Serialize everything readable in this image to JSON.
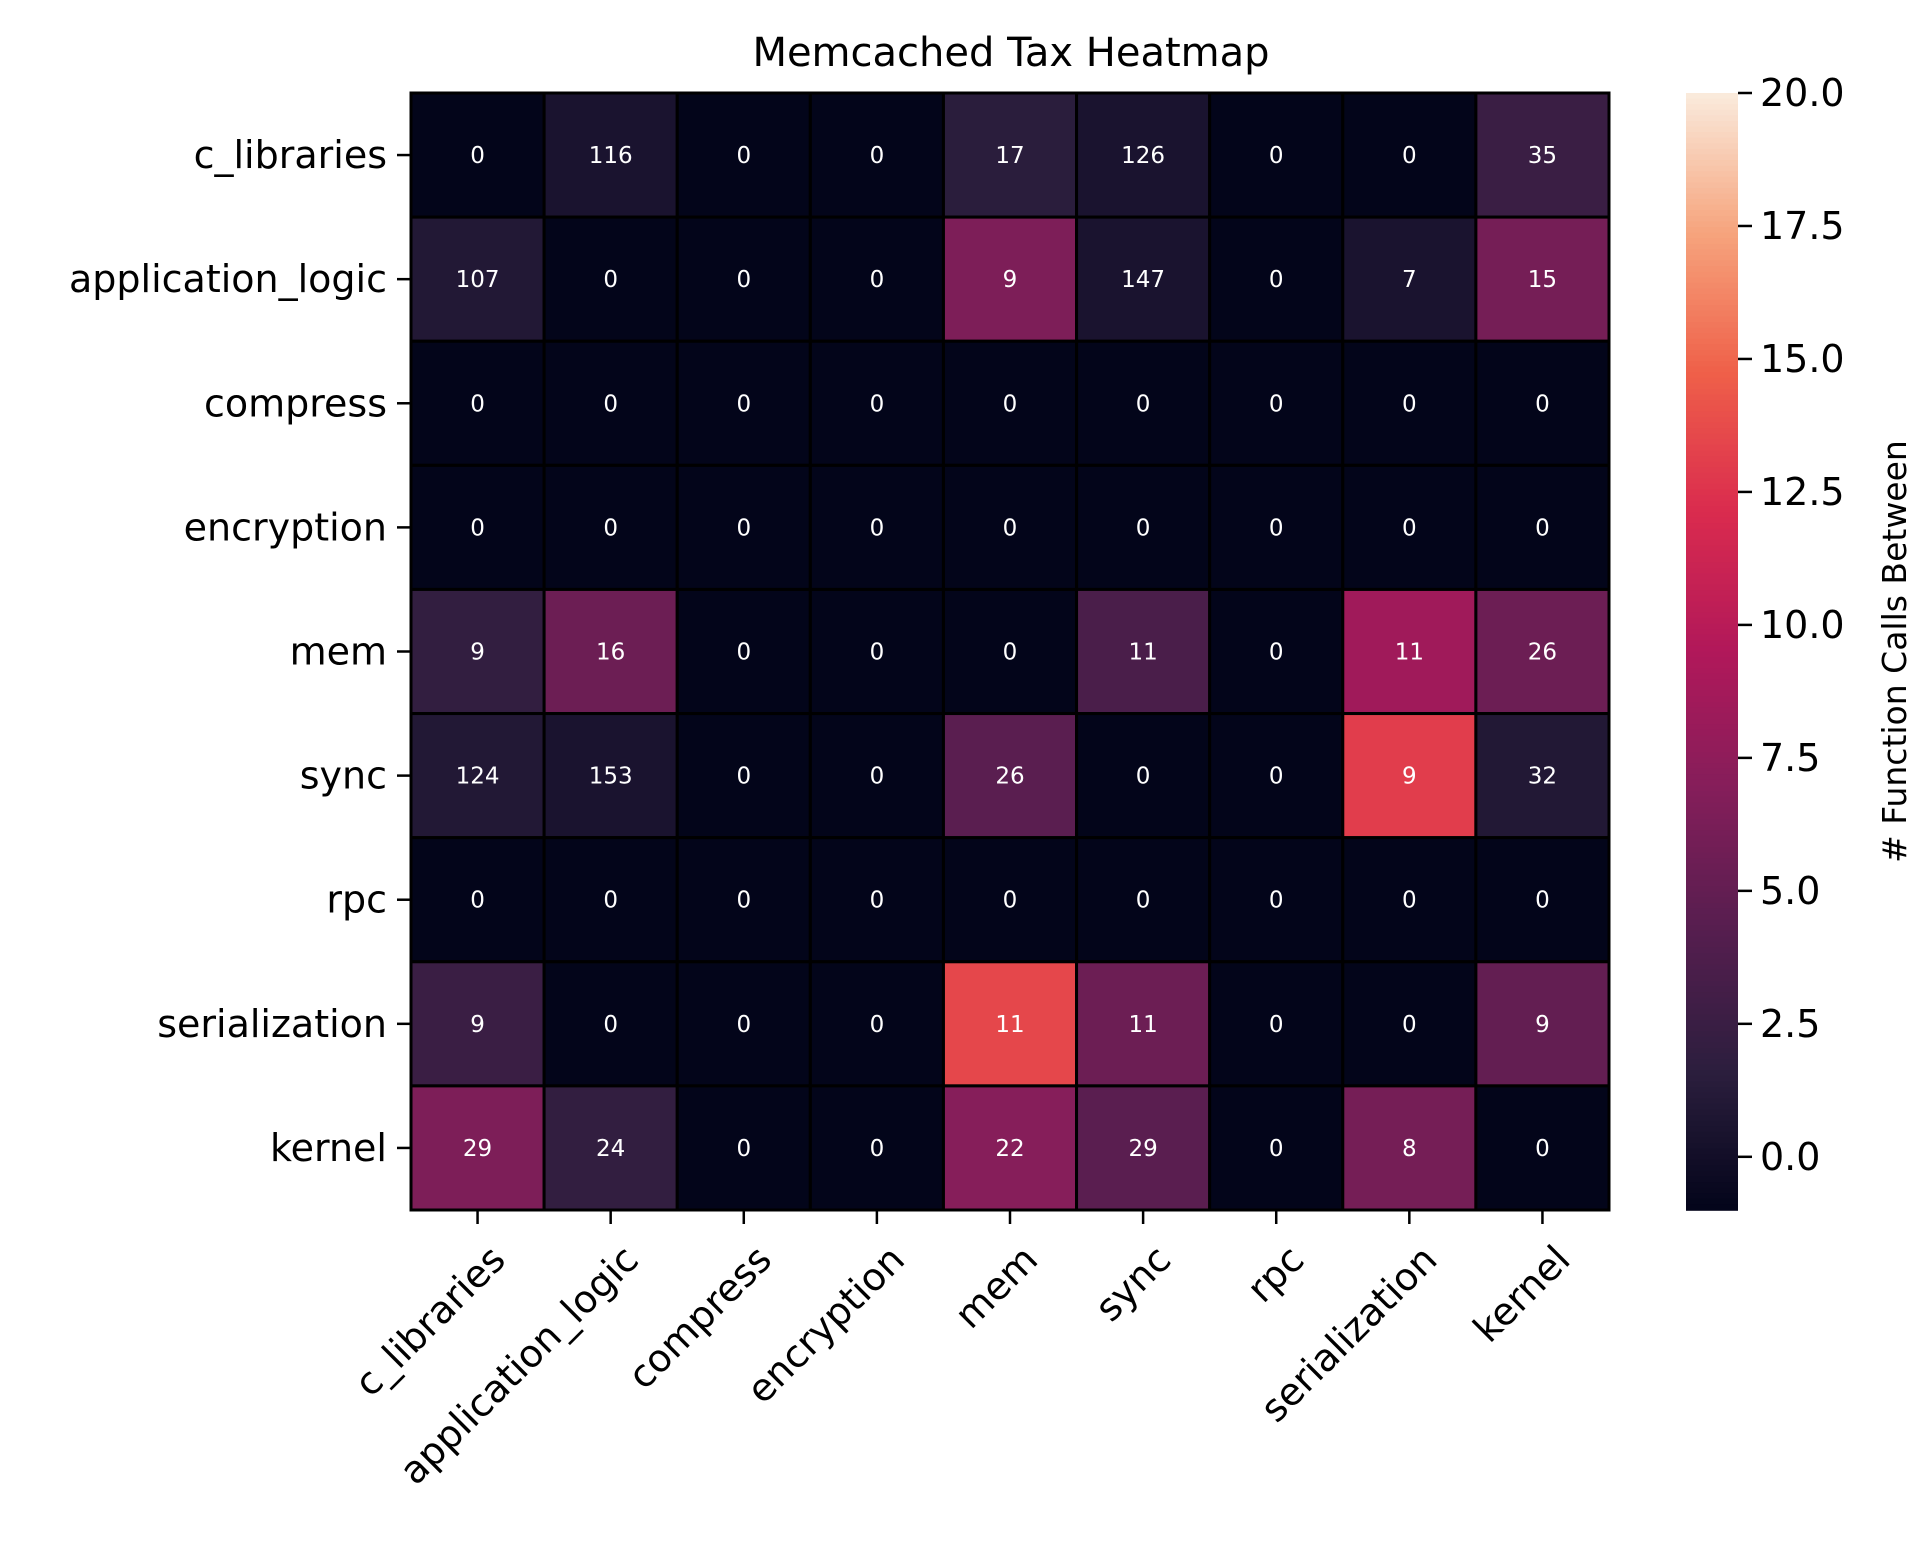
{
  "chart_data": {
    "type": "heatmap",
    "title": "Memcached Tax Heatmap",
    "xlabel": "",
    "ylabel": "",
    "rows": [
      "c_libraries",
      "application_logic",
      "compress",
      "encryption",
      "mem",
      "sync",
      "rpc",
      "serialization",
      "kernel"
    ],
    "columns": [
      "c_libraries",
      "application_logic",
      "compress",
      "encryption",
      "mem",
      "sync",
      "rpc",
      "serialization",
      "kernel"
    ],
    "annotations": [
      [
        0,
        116,
        0,
        0,
        17,
        126,
        0,
        0,
        35
      ],
      [
        107,
        0,
        0,
        0,
        9,
        147,
        0,
        7,
        15
      ],
      [
        0,
        0,
        0,
        0,
        0,
        0,
        0,
        0,
        0
      ],
      [
        0,
        0,
        0,
        0,
        0,
        0,
        0,
        0,
        0
      ],
      [
        9,
        16,
        0,
        0,
        0,
        11,
        0,
        11,
        26
      ],
      [
        124,
        153,
        0,
        0,
        26,
        0,
        0,
        9,
        32
      ],
      [
        0,
        0,
        0,
        0,
        0,
        0,
        0,
        0,
        0
      ],
      [
        9,
        0,
        0,
        0,
        11,
        11,
        0,
        0,
        9
      ],
      [
        29,
        24,
        0,
        0,
        22,
        29,
        0,
        8,
        0
      ]
    ],
    "color_values": [
      [
        -1,
        0.5,
        -1,
        -1,
        1.5,
        0.5,
        -1,
        -1,
        2.5
      ],
      [
        1.0,
        -1,
        -1,
        -1,
        6.5,
        0.5,
        -1,
        0.5,
        6.0
      ],
      [
        -1,
        -1,
        -1,
        -1,
        -1,
        -1,
        -1,
        -1,
        -1
      ],
      [
        -1,
        -1,
        -1,
        -1,
        -1,
        -1,
        -1,
        -1,
        -1
      ],
      [
        2.0,
        5.5,
        -1,
        -1,
        -1,
        3.5,
        -1,
        8.5,
        5.5
      ],
      [
        1.0,
        0.5,
        -1,
        -1,
        4.5,
        -1,
        -1,
        13.0,
        1.0
      ],
      [
        -1,
        -1,
        -1,
        -1,
        -1,
        -1,
        -1,
        -1,
        -1
      ],
      [
        2.5,
        -1,
        -1,
        -1,
        13.5,
        5.5,
        -1,
        -1,
        5.0
      ],
      [
        6.5,
        2.0,
        -1,
        -1,
        7.0,
        4.5,
        -1,
        6.0,
        -1
      ]
    ],
    "colorbar": {
      "label": "# Function Calls Between",
      "min": -1,
      "max": 20,
      "ticks": [
        "0.0",
        "2.5",
        "5.0",
        "7.5",
        "10.0",
        "12.5",
        "15.0",
        "17.5",
        "20.0"
      ],
      "colormap": [
        "#03051a",
        "#2c1e3e",
        "#561e4f",
        "#841e5a",
        "#b1185a",
        "#da2b4e",
        "#ef6049",
        "#f6a47d",
        "#faebdd"
      ]
    },
    "cell_border_color": "#000000",
    "grid": false
  }
}
